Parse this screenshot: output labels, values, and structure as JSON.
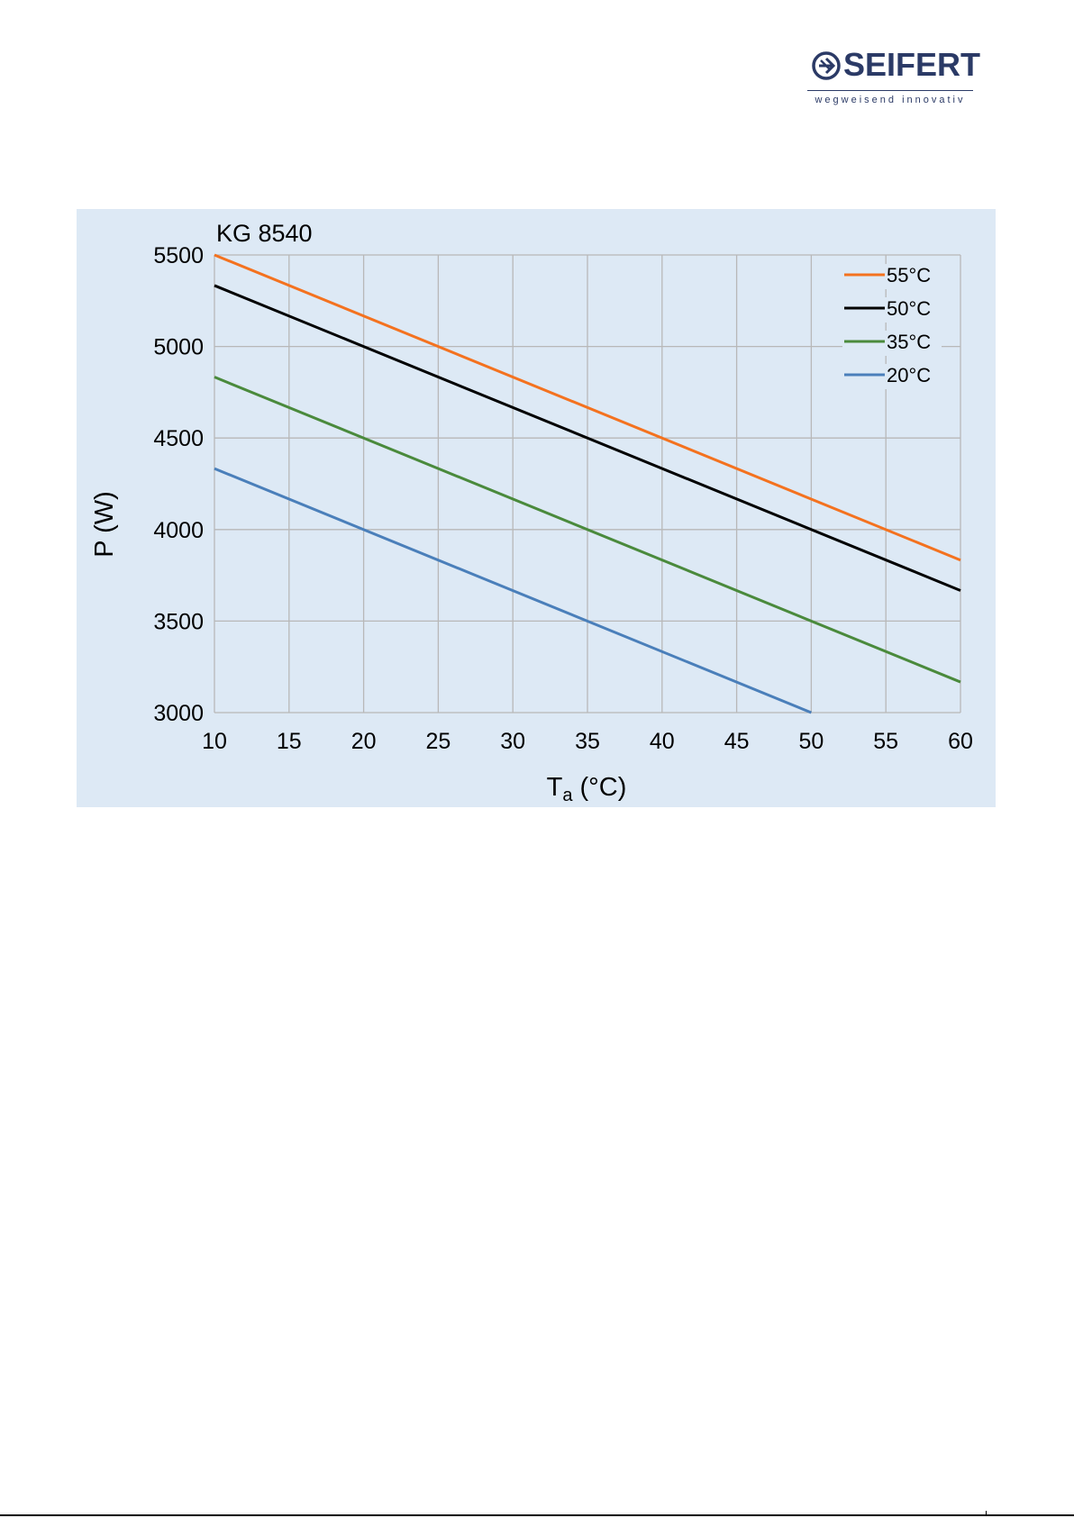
{
  "logo": {
    "brand": "SEIFERT",
    "tagline": "wegweisend innovativ",
    "color": "#2b3a66"
  },
  "chart_data": {
    "type": "line",
    "title": "KG 8540",
    "xlabel_main": "T",
    "xlabel_sub": "a",
    "xlabel_unit": " (°C)",
    "ylabel": "P (W)",
    "xlim": [
      10,
      60
    ],
    "ylim": [
      3000,
      5500
    ],
    "xticks": [
      10,
      15,
      20,
      25,
      30,
      35,
      40,
      45,
      50,
      55,
      60
    ],
    "yticks": [
      3000,
      3500,
      4000,
      4500,
      5000,
      5500
    ],
    "grid": true,
    "legend_position": "top-right",
    "series": [
      {
        "name": "55°C",
        "color": "#f4721f",
        "x": [
          10,
          60
        ],
        "y": [
          5500,
          3833
        ]
      },
      {
        "name": "50°C",
        "color": "#000000",
        "x": [
          10,
          60
        ],
        "y": [
          5333,
          3667
        ]
      },
      {
        "name": "35°C",
        "color": "#4a8a3c",
        "x": [
          10,
          60
        ],
        "y": [
          4833,
          3167
        ]
      },
      {
        "name": "20°C",
        "color": "#4a7fba",
        "x": [
          10,
          50
        ],
        "y": [
          4333,
          3000
        ]
      }
    ]
  }
}
